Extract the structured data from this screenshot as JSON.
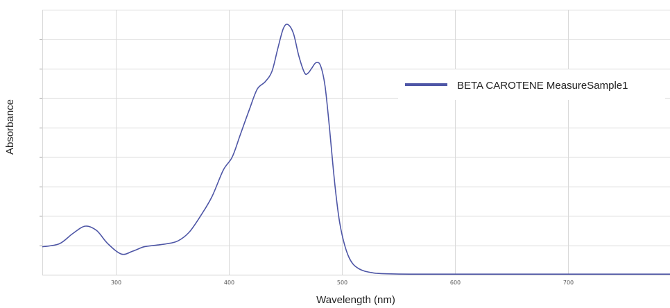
{
  "chart_data": {
    "type": "line",
    "title": "",
    "xlabel": "Wavelength (nm)",
    "ylabel": "Absorbance",
    "xlim": [
      235,
      790
    ],
    "ylim": [
      0,
      9
    ],
    "x_ticks": [
      300,
      400,
      500,
      600,
      700
    ],
    "y_tick_labels_shown": false,
    "grid": true,
    "legend_position": "top-right",
    "colors": {
      "series": "#4e56a6",
      "grid": "#d9d9d9"
    },
    "series": [
      {
        "name": "BETA CAROTENE MeasureSample1",
        "x": [
          235,
          250,
          262,
          273,
          283,
          293,
          305,
          315,
          325,
          335,
          345,
          355,
          365,
          375,
          385,
          395,
          403,
          410,
          418,
          425,
          432,
          438,
          443,
          448,
          452,
          457,
          462,
          467,
          470,
          473,
          477,
          481,
          485,
          489,
          492,
          495,
          498,
          502,
          506,
          510,
          515,
          520,
          525,
          530,
          540,
          560,
          600,
          650,
          700,
          750,
          790
        ],
        "y": [
          0.95,
          1.05,
          1.4,
          1.65,
          1.5,
          1.05,
          0.7,
          0.8,
          0.95,
          1.0,
          1.05,
          1.15,
          1.45,
          2.0,
          2.65,
          3.55,
          4.0,
          4.75,
          5.6,
          6.3,
          6.55,
          6.9,
          7.65,
          8.35,
          8.5,
          8.2,
          7.4,
          6.85,
          6.85,
          7.0,
          7.2,
          7.1,
          6.4,
          4.95,
          3.7,
          2.6,
          1.75,
          1.05,
          0.6,
          0.35,
          0.2,
          0.12,
          0.08,
          0.05,
          0.03,
          0.02,
          0.02,
          0.02,
          0.02,
          0.02,
          0.02
        ]
      }
    ]
  }
}
